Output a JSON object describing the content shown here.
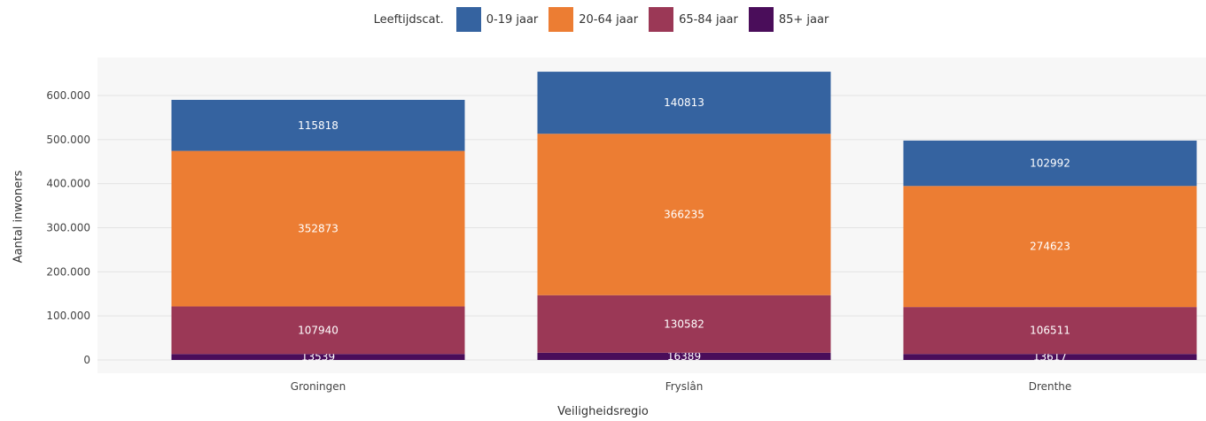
{
  "chart_data": {
    "type": "bar",
    "stacked": true,
    "categories": [
      "Groningen",
      "Fryslân",
      "Drenthe"
    ],
    "series": [
      {
        "name": "0-19 jaar",
        "color": "#3563a0",
        "values": [
          115818,
          140813,
          102992
        ]
      },
      {
        "name": "20-64 jaar",
        "color": "#ec7d33",
        "values": [
          352873,
          366235,
          274623
        ]
      },
      {
        "name": "65-84 jaar",
        "color": "#9b3856",
        "values": [
          107940,
          130582,
          106511
        ]
      },
      {
        "name": "85+ jaar",
        "color": "#4a0d5a",
        "values": [
          13539,
          16389,
          13617
        ]
      }
    ],
    "stack_order_bottom_to_top": [
      "85+ jaar",
      "65-84 jaar",
      "20-64 jaar",
      "0-19 jaar"
    ],
    "legend_title": "Leeftijdscat.",
    "legend_position": "top",
    "xlabel": "Veiligheidsregio",
    "ylabel": "Aantal inwoners",
    "ylim": [
      0,
      650000
    ],
    "yticks": [
      0,
      100000,
      200000,
      300000,
      400000,
      500000,
      600000
    ],
    "ytick_labels": [
      "0",
      "100.000",
      "200.000",
      "300.000",
      "400.000",
      "500.000",
      "600.000"
    ],
    "grid": true,
    "data_labels": true
  }
}
